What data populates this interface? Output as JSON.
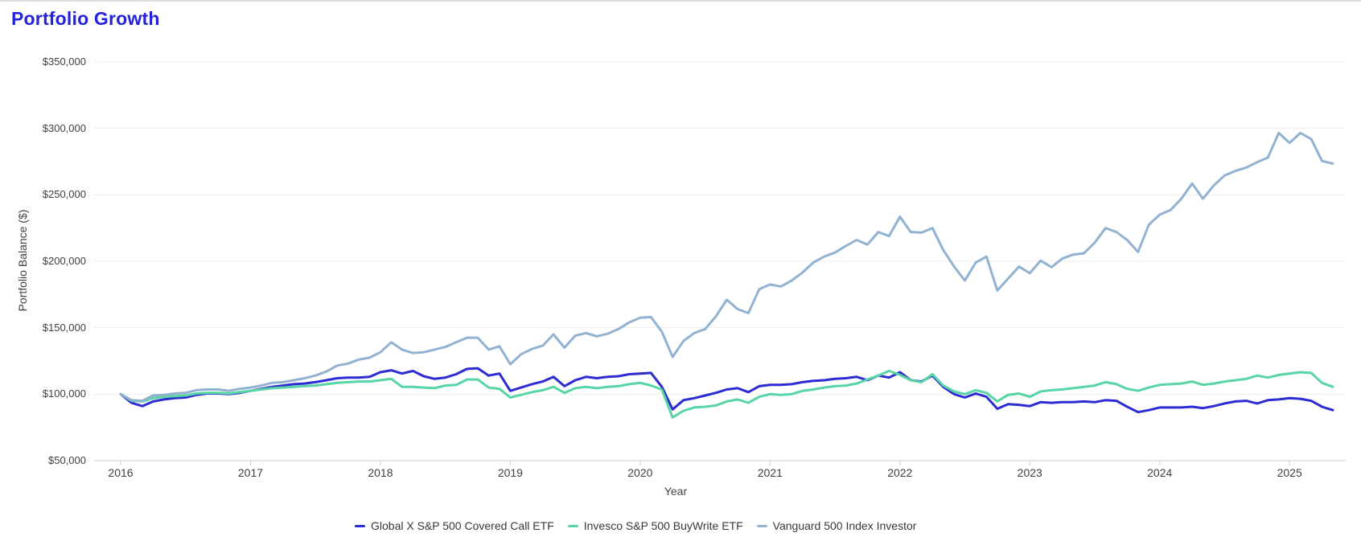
{
  "page": {
    "title": "Portfolio Growth"
  },
  "chart_data": {
    "type": "line",
    "title": "Portfolio Growth",
    "xlabel": "Year",
    "ylabel": "Portfolio Balance ($)",
    "x_start": "2015-12",
    "x_interval": "monthly",
    "x_tick_labels": [
      "2016",
      "2017",
      "2018",
      "2019",
      "2020",
      "2021",
      "2022",
      "2023",
      "2024",
      "2025"
    ],
    "y_tick_labels": [
      "$50,000",
      "$100,000",
      "$150,000",
      "$200,000",
      "$250,000",
      "$300,000",
      "$350,000"
    ],
    "ylim": [
      50000,
      350000
    ],
    "y_tick_step": 50000,
    "grid": true,
    "legend_position": "bottom",
    "series": [
      {
        "name": "Global X S&P 500 Covered Call ETF",
        "color": "#2d2bd4",
        "values": [
          100000,
          93500,
          91000,
          94500,
          96000,
          97000,
          97500,
          99500,
          100500,
          100500,
          100000,
          101000,
          102500,
          104000,
          105500,
          106500,
          107500,
          108000,
          109000,
          110500,
          112000,
          112500,
          112500,
          113000,
          116500,
          118000,
          115500,
          117500,
          113500,
          111500,
          112500,
          115000,
          119000,
          119500,
          114000,
          115500,
          102500,
          105000,
          107500,
          109500,
          113000,
          106000,
          110500,
          113000,
          112000,
          113000,
          113500,
          115000,
          115500,
          116000,
          105500,
          88500,
          95500,
          97000,
          99000,
          101000,
          103500,
          104500,
          101500,
          106000,
          107000,
          107000,
          107500,
          109000,
          110000,
          110500,
          111500,
          112000,
          113000,
          110500,
          114000,
          112500,
          116500,
          110500,
          109500,
          114000,
          105500,
          100000,
          97500,
          100500,
          98000,
          89000,
          92500,
          92000,
          91000,
          94000,
          93500,
          94000,
          94000,
          94500,
          94000,
          95500,
          95000,
          90500,
          86500,
          88000,
          90000,
          90000,
          90000,
          90500,
          89500,
          91000,
          93000,
          94500,
          95000,
          93000,
          95500,
          96000,
          97000,
          96500,
          95000,
          90500,
          88000
        ]
      },
      {
        "name": "Invesco S&P 500 BuyWrite ETF",
        "color": "#57d5a5",
        "values": [
          100000,
          95000,
          94500,
          97000,
          98000,
          98500,
          99000,
          100500,
          101000,
          101000,
          100500,
          101500,
          102500,
          103500,
          104500,
          105000,
          105500,
          106000,
          106500,
          107500,
          108500,
          109000,
          109500,
          109500,
          110500,
          111500,
          105500,
          105500,
          105000,
          104500,
          106500,
          107000,
          111000,
          111000,
          105000,
          104000,
          97500,
          99500,
          101500,
          103000,
          105500,
          101000,
          104500,
          105500,
          104500,
          105500,
          106000,
          107500,
          108500,
          106500,
          103500,
          82500,
          87500,
          90000,
          90500,
          91500,
          94500,
          96000,
          93500,
          98000,
          100000,
          99500,
          100000,
          102500,
          103500,
          105000,
          106000,
          106500,
          108000,
          111000,
          114000,
          117500,
          114500,
          110500,
          109000,
          115000,
          106500,
          102000,
          100000,
          103000,
          101000,
          94500,
          99500,
          100500,
          98000,
          102000,
          103000,
          103500,
          104500,
          105500,
          106500,
          109000,
          107500,
          104000,
          102500,
          105000,
          107000,
          107500,
          108000,
          109500,
          107000,
          108000,
          109500,
          110500,
          111500,
          114000,
          112500,
          114500,
          115500,
          116500,
          116000,
          108500,
          105500
        ]
      },
      {
        "name": "Vanguard 500 Index Investor",
        "color": "#92b2d1",
        "values": [
          100000,
          95500,
          95000,
          99000,
          99500,
          100500,
          101000,
          103000,
          103500,
          103500,
          102500,
          104000,
          105000,
          106500,
          108500,
          109000,
          110500,
          112000,
          114000,
          117000,
          121500,
          123000,
          126000,
          127500,
          131500,
          139000,
          133500,
          131000,
          131500,
          133500,
          135500,
          139000,
          142500,
          142500,
          133500,
          136000,
          122500,
          130000,
          134000,
          136500,
          145000,
          135000,
          144000,
          146000,
          143500,
          145500,
          149000,
          154000,
          157500,
          158000,
          147000,
          128000,
          140000,
          146000,
          149000,
          158500,
          171000,
          164000,
          161000,
          179000,
          182500,
          181000,
          185500,
          191500,
          199000,
          203500,
          206500,
          211500,
          216000,
          212500,
          222000,
          219000,
          233500,
          222000,
          221500,
          225000,
          208500,
          196000,
          185500,
          199000,
          203500,
          178000,
          187000,
          196000,
          191000,
          200500,
          195500,
          202000,
          205000,
          206000,
          214000,
          225000,
          222000,
          216000,
          207000,
          227500,
          235000,
          238500,
          247000,
          258500,
          247000,
          257000,
          264500,
          268000,
          270500,
          274500,
          278000,
          296500,
          289000,
          296500,
          292000,
          275500,
          273500
        ]
      }
    ],
    "colors": {
      "title": "#2322dd",
      "grid": "#ededed",
      "axis": "#c9ced6",
      "tick_text": "#3f3f3f"
    }
  }
}
